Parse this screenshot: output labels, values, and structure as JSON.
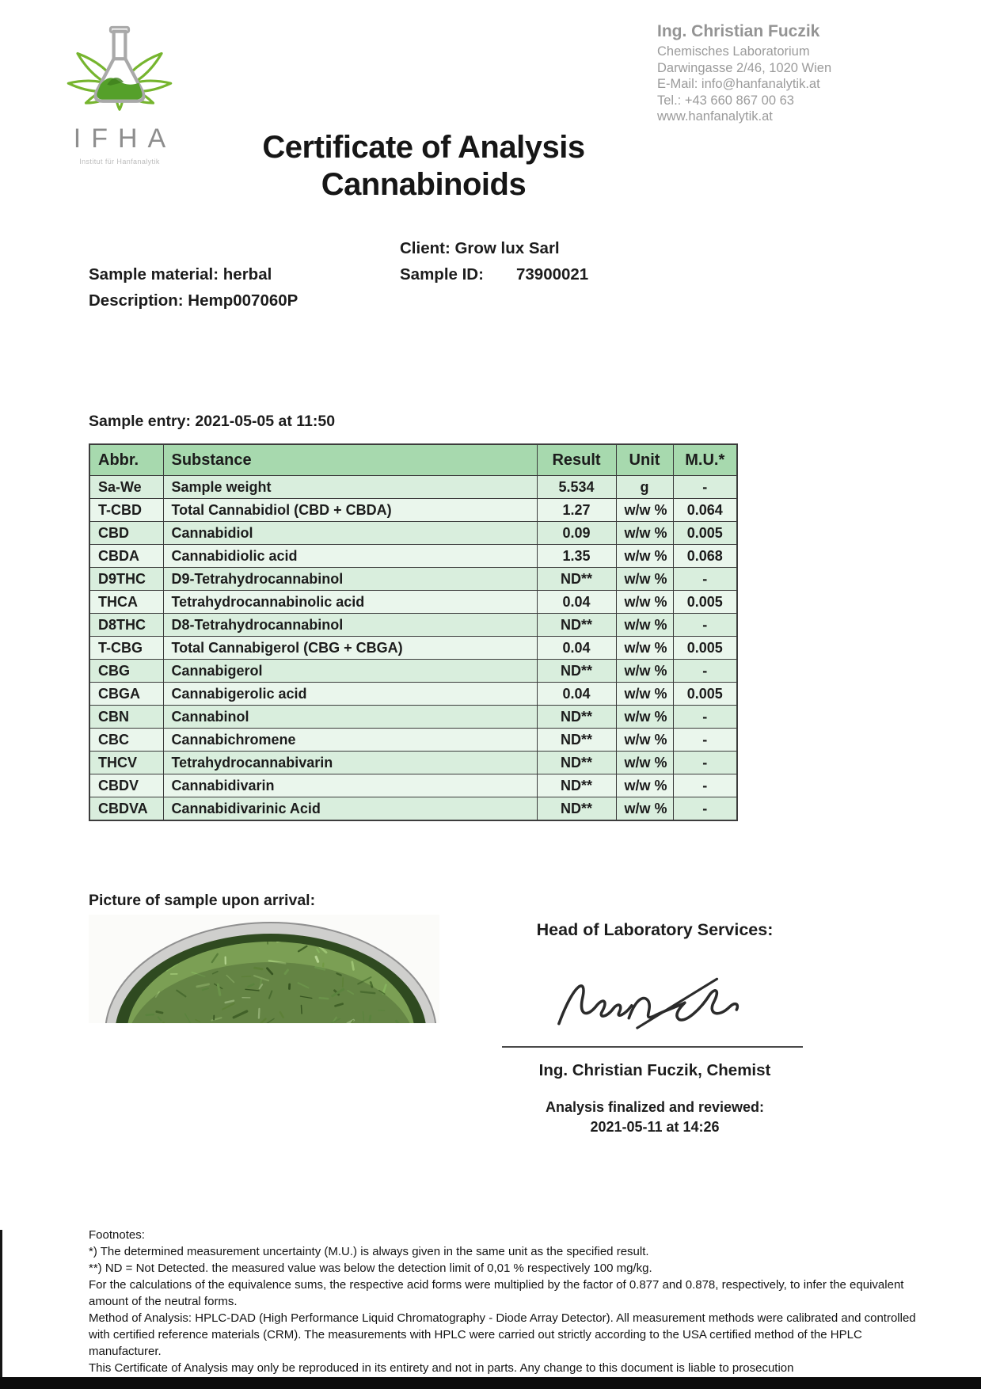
{
  "header": {
    "logo": {
      "acronym": "IFHA",
      "tagline": "Institut für Hanfanalytik"
    },
    "contact": {
      "name": "Ing. Christian Fuczik",
      "lines": [
        "Chemisches Laboratorium",
        "Darwingasse 2/46, 1020 Wien",
        "E-Mail: info@hanfanalytik.at",
        "Tel.: +43 660 867 00 63",
        "www.hanfanalytik.at"
      ]
    }
  },
  "title": {
    "line1": "Certificate of Analysis",
    "line2": "Cannabinoids"
  },
  "sample_info": {
    "client": "Client: Grow lux Sarl",
    "material": "Sample material: herbal",
    "description": "Description: Hemp007060P",
    "sample_id_label": "Sample ID:",
    "sample_id_value": "73900021"
  },
  "sample_entry": "Sample entry: 2021-05-05 at 11:50",
  "table": {
    "headers": [
      "Abbr.",
      "Substance",
      "Result",
      "Unit",
      "M.U.*"
    ],
    "rows": [
      [
        "Sa-We",
        "Sample weight",
        "5.534",
        "g",
        "-"
      ],
      [
        "T-CBD",
        "Total Cannabidiol (CBD + CBDA)",
        "1.27",
        "w/w %",
        "0.064"
      ],
      [
        "CBD",
        "Cannabidiol",
        "0.09",
        "w/w %",
        "0.005"
      ],
      [
        "CBDA",
        "Cannabidiolic acid",
        "1.35",
        "w/w %",
        "0.068"
      ],
      [
        "D9THC",
        "D9-Tetrahydrocannabinol",
        "ND**",
        "w/w %",
        "-"
      ],
      [
        "THCA",
        "Tetrahydrocannabinolic acid",
        "0.04",
        "w/w %",
        "0.005"
      ],
      [
        "D8THC",
        "D8-Tetrahydrocannabinol",
        "ND**",
        "w/w %",
        "-"
      ],
      [
        "T-CBG",
        "Total Cannabigerol (CBG + CBGA)",
        "0.04",
        "w/w %",
        "0.005"
      ],
      [
        "CBG",
        "Cannabigerol",
        "ND**",
        "w/w %",
        "-"
      ],
      [
        "CBGA",
        "Cannabigerolic acid",
        "0.04",
        "w/w %",
        "0.005"
      ],
      [
        "CBN",
        "Cannabinol",
        "ND**",
        "w/w %",
        "-"
      ],
      [
        "CBC",
        "Cannabichromene",
        "ND**",
        "w/w %",
        "-"
      ],
      [
        "THCV",
        "Tetrahydrocannabivarin",
        "ND**",
        "w/w %",
        "-"
      ],
      [
        "CBDV",
        "Cannabidivarin",
        "ND**",
        "w/w %",
        "-"
      ],
      [
        "CBDVA",
        "Cannabidivarinic Acid",
        "ND**",
        "w/w %",
        "-"
      ]
    ]
  },
  "picture_label": "Picture of sample upon arrival:",
  "signature_block": {
    "heading": "Head of Laboratory Services:",
    "signer": "Ing. Christian Fuczik, Chemist",
    "finalized_label": "Analysis finalized and reviewed:",
    "finalized_date": "2021-05-11 at 14:26"
  },
  "footnotes": {
    "heading": "Footnotes:",
    "lines": [
      "*) The determined measurement uncertainty (M.U.) is always given in the same unit as the specified result.",
      "**) ND = Not Detected. the measured value was below the detection limit of 0,01 % respectively 100 mg/kg.",
      "For the calculations of the equivalence sums, the respective acid forms were multiplied by the factor of 0.877 and 0.878, respectively, to infer the equivalent amount of the neutral forms.",
      "Method of Analysis: HPLC-DAD (High Performance Liquid Chromatography - Diode Array Detector). All measurement methods were calibrated and controlled with certified reference materials (CRM). The measurements with HPLC were carried out strictly according to the USA certified method of the HPLC manufacturer.",
      "This Certificate of Analysis may only be reproduced in its entirety and not in parts. Any change to this document is liable to prosecution"
    ]
  },
  "colors": {
    "accent_green": "#76b52e",
    "flask_liquid": "#55a02a",
    "table_header_bg": "#a7d9ae",
    "row_odd_bg": "#d9eedd",
    "row_even_bg": "#eaf6ec",
    "table_border": "#3c3c3c",
    "gray_text": "#9b9b9b"
  }
}
